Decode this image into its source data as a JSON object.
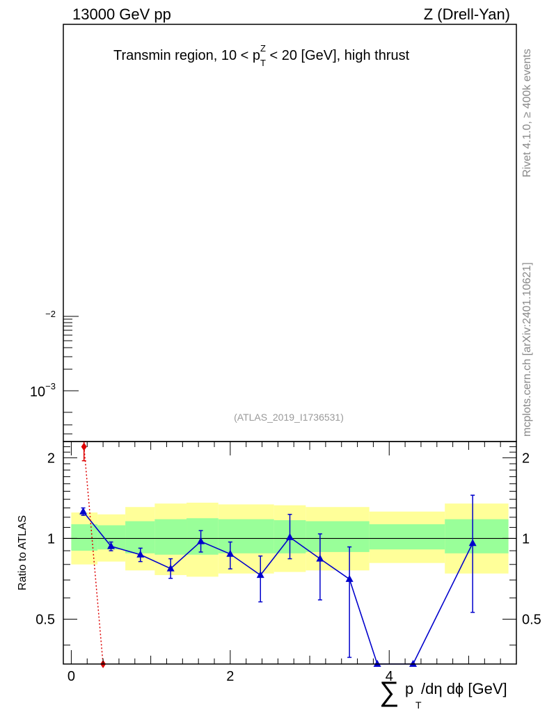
{
  "header": {
    "left": "13000 GeV pp",
    "right": "Z (Drell-Yan)"
  },
  "side_labels": {
    "rivet": "Rivet 4.1.0, ≥ 400k events",
    "mcplots": "mcplots.cern.ch [arXiv:2401.10621]"
  },
  "main_panel": {
    "title_prefix": "Transmin region, 10 < p",
    "title_sub": "T",
    "title_sup": "Z",
    "title_suffix": " < 20 [GeV], high thrust",
    "watermark": "(ATLAS_2019_I1736531)",
    "y_tick_minus2": "−2",
    "y_tick_1e3_base": "10",
    "y_tick_1e3_exp": "−3"
  },
  "chart_data": {
    "type": "line",
    "xlabel": "∑ p_T /dη dϕ [GeV]",
    "ylabel": "Ratio to ATLAS",
    "xlim": [
      -0.1,
      5.6
    ],
    "ylim": [
      0.34,
      2.3
    ],
    "y_scale": "log",
    "x_ticks": [
      {
        "value": 0,
        "label": "0"
      },
      {
        "value": 2,
        "label": "2"
      },
      {
        "value": 4,
        "label": "4"
      }
    ],
    "y_ticks": [
      {
        "value": 0.5,
        "label": "0.5"
      },
      {
        "value": 1,
        "label": "1"
      },
      {
        "value": 2,
        "label": "2"
      }
    ],
    "reference_line": 1,
    "bands": {
      "colors": {
        "outer": "#ffff99",
        "inner": "#99ff99"
      },
      "bins": [
        {
          "x0": 0.0,
          "x1": 0.33,
          "outer": [
            0.8,
            1.25
          ],
          "inner": [
            0.9,
            1.13
          ]
        },
        {
          "x0": 0.33,
          "x1": 0.68,
          "outer": [
            0.82,
            1.23
          ],
          "inner": [
            0.91,
            1.12
          ]
        },
        {
          "x0": 0.68,
          "x1": 1.05,
          "outer": [
            0.76,
            1.31
          ],
          "inner": [
            0.88,
            1.16
          ]
        },
        {
          "x0": 1.05,
          "x1": 1.45,
          "outer": [
            0.73,
            1.35
          ],
          "inner": [
            0.87,
            1.18
          ]
        },
        {
          "x0": 1.45,
          "x1": 1.85,
          "outer": [
            0.72,
            1.36
          ],
          "inner": [
            0.87,
            1.19
          ]
        },
        {
          "x0": 1.85,
          "x1": 2.55,
          "outer": [
            0.74,
            1.34
          ],
          "inner": [
            0.88,
            1.18
          ]
        },
        {
          "x0": 2.55,
          "x1": 2.95,
          "outer": [
            0.75,
            1.33
          ],
          "inner": [
            0.88,
            1.17
          ]
        },
        {
          "x0": 2.95,
          "x1": 3.75,
          "outer": [
            0.76,
            1.31
          ],
          "inner": [
            0.89,
            1.16
          ]
        },
        {
          "x0": 3.75,
          "x1": 4.7,
          "outer": [
            0.81,
            1.26
          ],
          "inner": [
            0.91,
            1.13
          ]
        },
        {
          "x0": 4.7,
          "x1": 5.5,
          "outer": [
            0.74,
            1.35
          ],
          "inner": [
            0.88,
            1.18
          ]
        }
      ]
    },
    "series": [
      {
        "color": "#0000cc",
        "marker": "triangle",
        "points": [
          {
            "x": 0.15,
            "y": 1.26,
            "lo": 1.22,
            "hi": 1.3
          },
          {
            "x": 0.5,
            "y": 0.935,
            "lo": 0.9,
            "hi": 0.97
          },
          {
            "x": 0.87,
            "y": 0.87,
            "lo": 0.82,
            "hi": 0.92
          },
          {
            "x": 1.25,
            "y": 0.772,
            "lo": 0.71,
            "hi": 0.84
          },
          {
            "x": 1.63,
            "y": 0.975,
            "lo": 0.89,
            "hi": 1.07
          },
          {
            "x": 2.0,
            "y": 0.875,
            "lo": 0.77,
            "hi": 0.97
          },
          {
            "x": 2.38,
            "y": 0.73,
            "lo": 0.58,
            "hi": 0.86
          },
          {
            "x": 2.75,
            "y": 1.01,
            "lo": 0.84,
            "hi": 1.23
          },
          {
            "x": 3.13,
            "y": 0.84,
            "lo": 0.59,
            "hi": 1.04
          },
          {
            "x": 3.5,
            "y": 0.705,
            "lo": 0.36,
            "hi": 0.93
          },
          {
            "x": 3.85,
            "y": 0.34
          },
          {
            "x": 4.3,
            "y": 0.34
          },
          {
            "x": 5.05,
            "y": 0.96,
            "lo": 0.53,
            "hi": 1.45
          }
        ]
      },
      {
        "color": "#dd0000",
        "marker": "diamond",
        "dotted": true,
        "points": [
          {
            "x": 0.16,
            "y": 2.2,
            "lo": 1.95,
            "hi": 2.3
          },
          {
            "x": 0.4,
            "y": 0.34
          }
        ]
      }
    ]
  }
}
